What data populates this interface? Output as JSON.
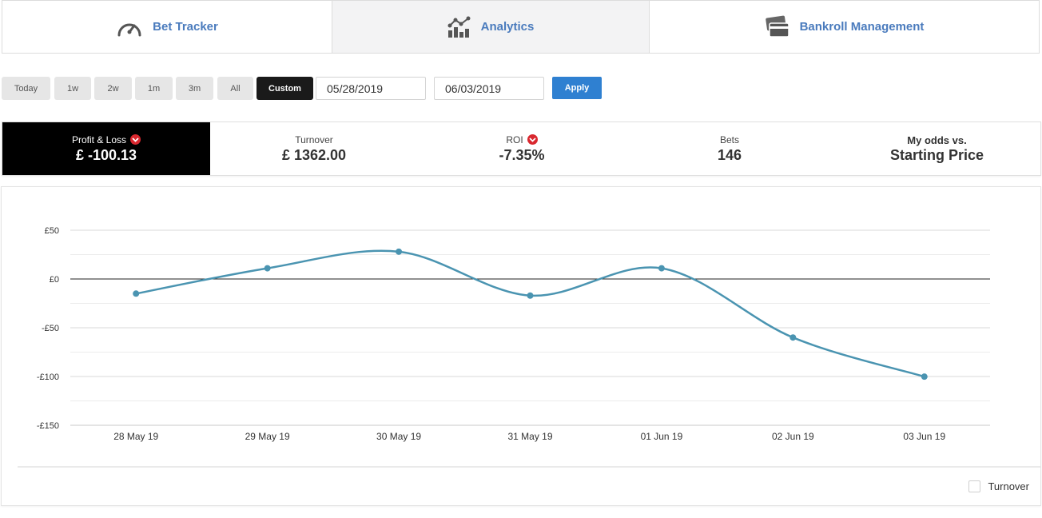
{
  "tabs": [
    {
      "label": "Bet Tracker",
      "icon": "speedometer-icon",
      "active": false
    },
    {
      "label": "Analytics",
      "icon": "analytics-icon",
      "active": true
    },
    {
      "label": "Bankroll Management",
      "icon": "wallet-card-icon",
      "active": false
    }
  ],
  "filters": {
    "ranges": [
      "Today",
      "1w",
      "2w",
      "1m",
      "3m",
      "All",
      "Custom"
    ],
    "selected": "Custom",
    "start_date": "05/28/2019",
    "end_date": "06/03/2019",
    "apply_label": "Apply"
  },
  "stats": {
    "pl": {
      "label": "Profit & Loss",
      "value": "£ -100.13"
    },
    "turnover": {
      "label": "Turnover",
      "value": "£ 1362.00"
    },
    "roi": {
      "label": "ROI",
      "value": "-7.35%"
    },
    "bets": {
      "label": "Bets",
      "value": "146"
    },
    "odds": {
      "label": "My odds vs.",
      "value": "Starting Price"
    }
  },
  "colors": {
    "accent_blue": "#2f80d1",
    "tab_text": "#4a7bbd",
    "line": "#4a94b1",
    "negative_badge": "#d9282f"
  },
  "chart_data": {
    "type": "line",
    "categories": [
      "28 May 19",
      "29 May 19",
      "30 May 19",
      "31 May 19",
      "01 Jun 19",
      "02 Jun 19",
      "03 Jun 19"
    ],
    "series": [
      {
        "values": [
          -15,
          11,
          28,
          -17,
          11,
          -60,
          -100.13
        ]
      }
    ],
    "y_ticks": [
      50,
      0,
      -50,
      -100,
      -150
    ],
    "y_tick_labels": [
      "£50",
      "£0",
      "-£50",
      "-£100",
      "-£150"
    ],
    "ylim": [
      -150,
      50
    ],
    "grid": true,
    "legend": [
      {
        "label": "Turnover",
        "checked": false,
        "position": "bottom-right"
      }
    ]
  }
}
